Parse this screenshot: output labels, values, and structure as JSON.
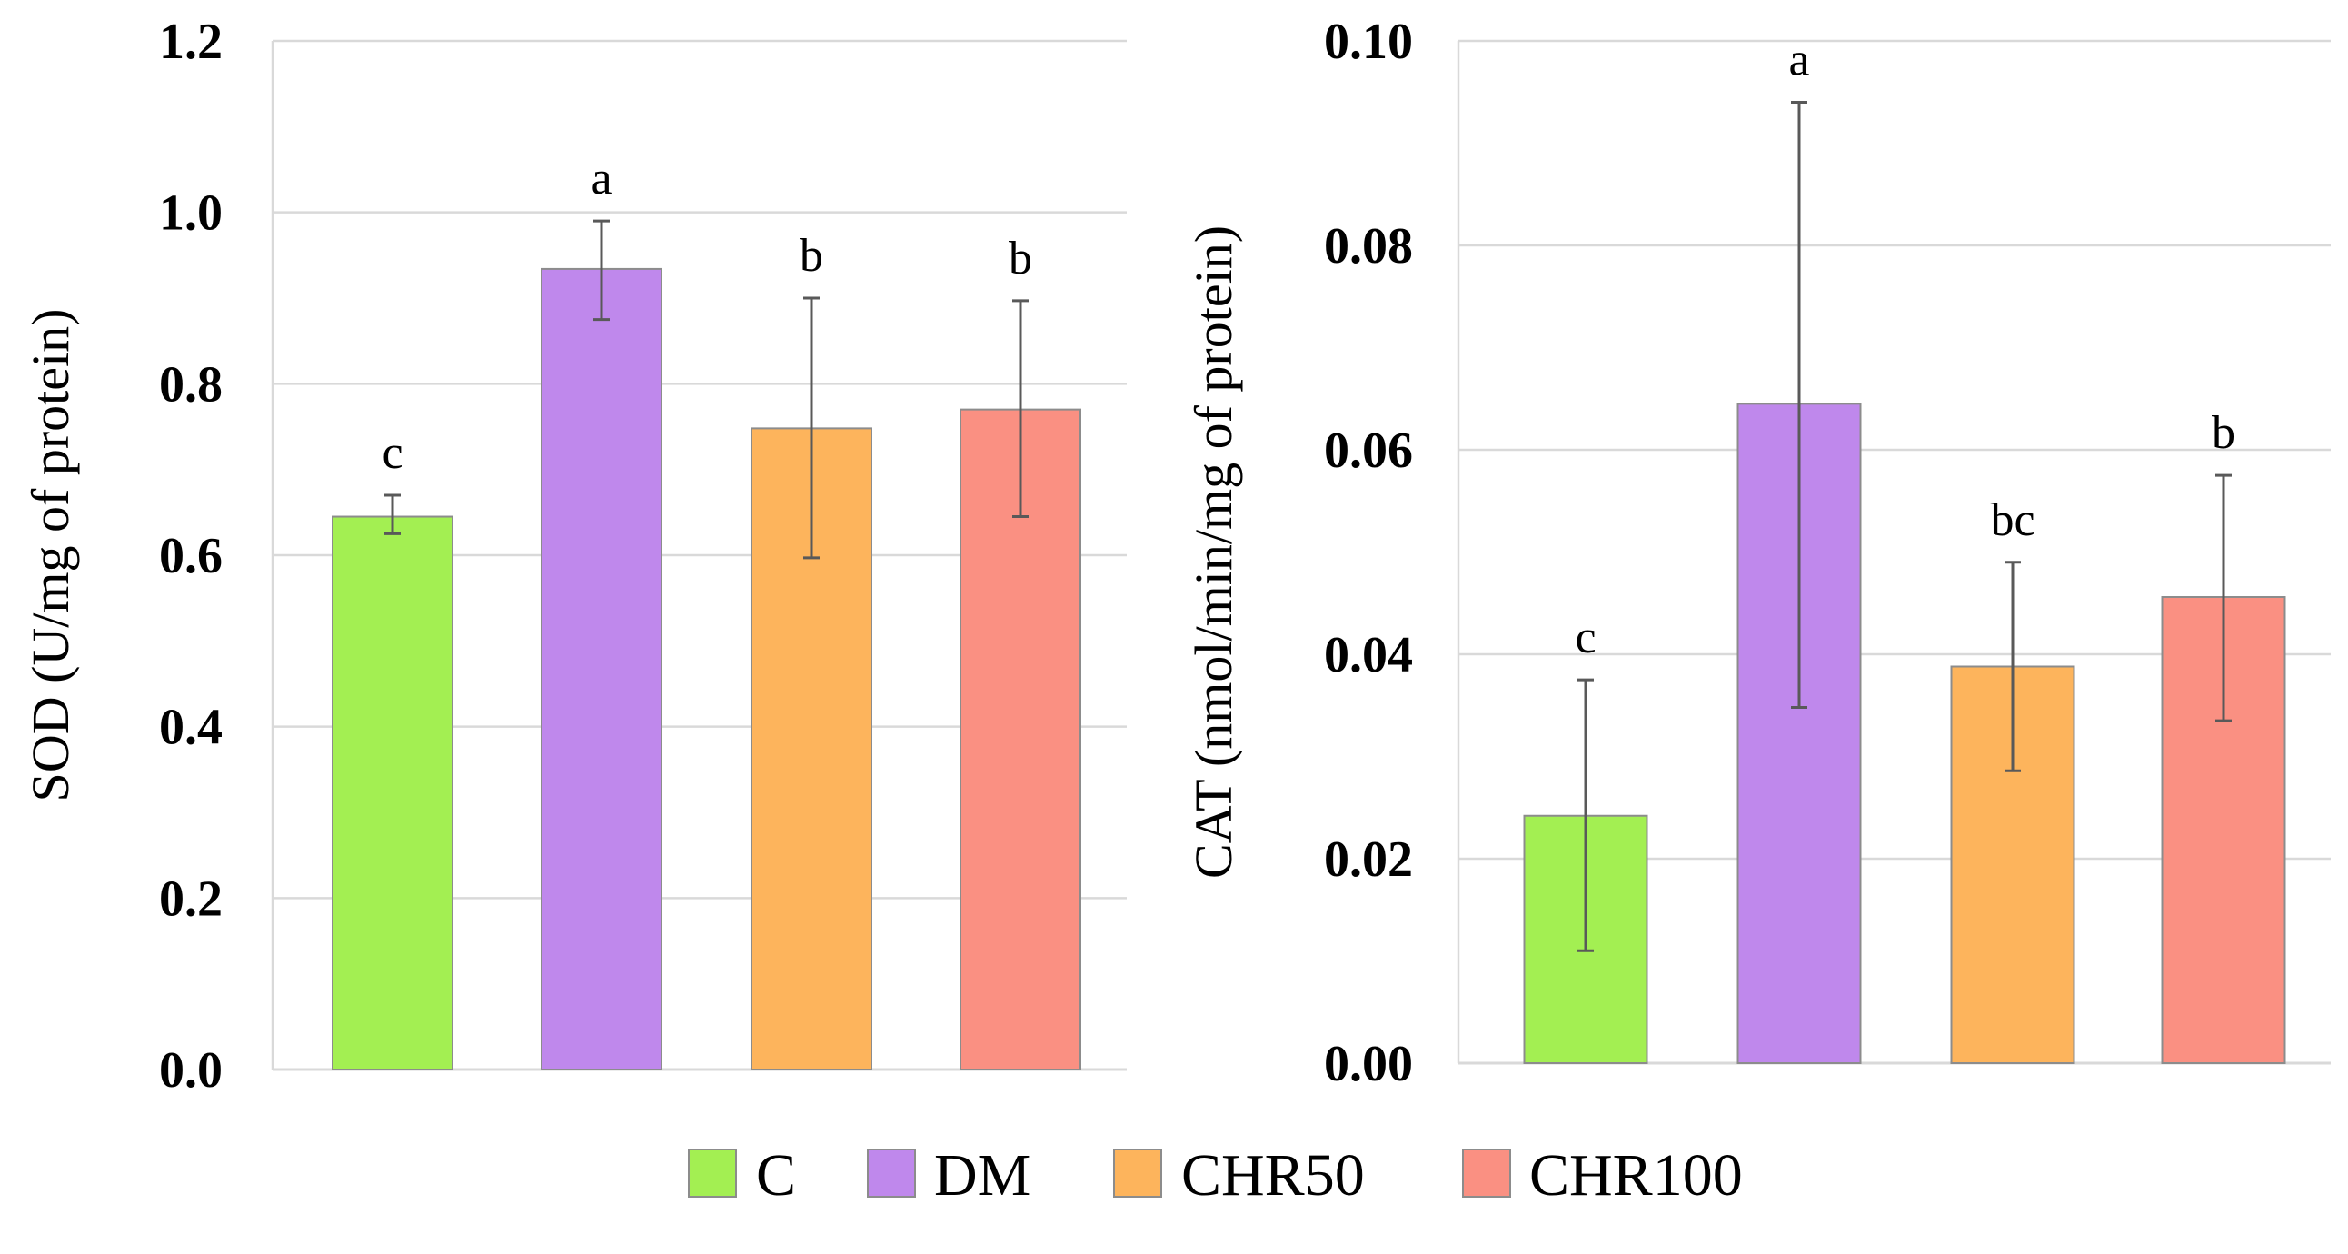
{
  "chart_data": [
    {
      "type": "bar",
      "categories": [
        "C",
        "DM",
        "CHR50",
        "CHR100"
      ],
      "values": [
        0.645,
        0.934,
        0.748,
        0.77
      ],
      "errors_upper": [
        0.67,
        0.99,
        0.9,
        0.897
      ],
      "errors_lower": [
        0.625,
        0.875,
        0.597,
        0.645
      ],
      "significance": [
        "c",
        "a",
        "b",
        "b"
      ],
      "ylabel": "SOD (U/mg of protein)",
      "ylim": [
        0,
        1.2
      ],
      "yticks": [
        "0.0",
        "0.2",
        "0.4",
        "0.6",
        "0.8",
        "1.0",
        "1.2"
      ],
      "grid": true
    },
    {
      "type": "bar",
      "categories": [
        "C",
        "DM",
        "CHR50",
        "CHR100"
      ],
      "values": [
        0.0242,
        0.0645,
        0.0388,
        0.0456
      ],
      "errors_upper": [
        0.0375,
        0.094,
        0.049,
        0.0575
      ],
      "errors_lower": [
        0.011,
        0.0348,
        0.0286,
        0.0335
      ],
      "significance": [
        "c",
        "a",
        "bc",
        "b"
      ],
      "ylabel": "CAT (nmol/min/mg of protein)",
      "ylim": [
        0,
        0.1
      ],
      "yticks": [
        "0.00",
        "0.02",
        "0.04",
        "0.06",
        "0.08",
        "0.10"
      ],
      "grid": true
    }
  ],
  "legend": {
    "placement": "bottom-center",
    "items": [
      {
        "label": "C",
        "color": "#a3ef52"
      },
      {
        "label": "DM",
        "color": "#bf88ec"
      },
      {
        "label": "CHR50",
        "color": "#fdb45c"
      },
      {
        "label": "CHR100",
        "color": "#fa9082"
      }
    ]
  },
  "colors": {
    "bar_stroke": "#8c8c8c",
    "grid": "#d9d9d9",
    "error_bar": "#595959"
  }
}
